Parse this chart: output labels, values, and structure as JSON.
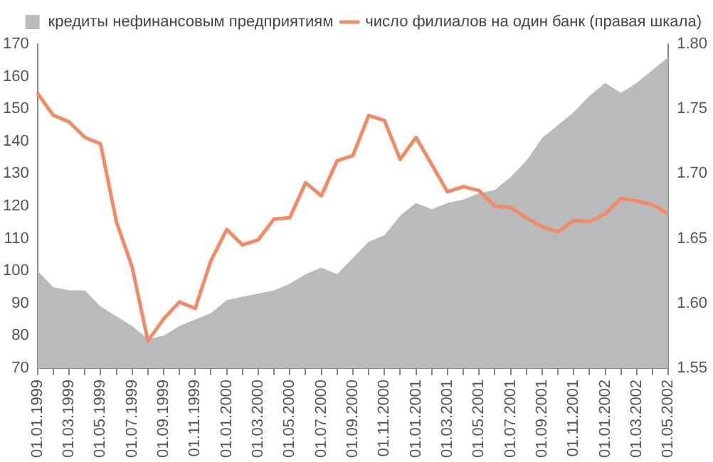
{
  "chart_data": {
    "type": "area",
    "categories": [
      "01.01.1999",
      null,
      "01.03.1999",
      null,
      "01.05.1999",
      null,
      "01.07.1999",
      null,
      "01.09.1999",
      null,
      "01.11.1999",
      null,
      "01.01.2000",
      null,
      "01.03.2000",
      null,
      "01.05.2000",
      null,
      "01.07.2000",
      null,
      "01.09.2000",
      null,
      "01.11.2000",
      null,
      "01.01.2001",
      null,
      "01.03.2001",
      null,
      "01.05.2001",
      null,
      "01.07.2001",
      null,
      "01.09.2001",
      null,
      "01.11.2001",
      null,
      "01.01.2002",
      null,
      "01.03.2002",
      null,
      "01.05.2002"
    ],
    "series": [
      {
        "name": "кредиты нефинансовым предприятиям",
        "color": "#b9babc",
        "values": [
          100,
          95,
          94,
          94,
          89,
          86,
          83,
          79,
          80,
          83,
          85,
          87,
          91,
          92,
          93,
          94,
          96,
          99,
          101,
          99,
          104,
          109,
          111,
          117,
          121,
          119,
          121,
          122,
          124,
          125,
          129,
          134,
          141,
          145,
          149,
          154,
          158,
          155,
          158,
          162,
          166
        ]
      },
      {
        "name": "число филиалов на один банк (правая шкала)",
        "type": "line",
        "axis": "y2",
        "color": "#f28a66",
        "values": [
          1.762,
          1.745,
          1.74,
          1.728,
          1.723,
          1.663,
          1.628,
          1.571,
          1.588,
          1.601,
          1.596,
          1.633,
          1.657,
          1.645,
          1.649,
          1.665,
          1.666,
          1.693,
          1.683,
          1.71,
          1.714,
          1.745,
          1.741,
          1.711,
          1.728,
          1.707,
          1.686,
          1.69,
          1.687,
          1.675,
          1.674,
          1.666,
          1.659,
          1.655,
          1.664,
          1.663,
          1.669,
          1.681,
          1.679,
          1.676,
          1.669
        ]
      }
    ],
    "ylim": [
      70,
      170
    ],
    "yticks": [
      70,
      80,
      90,
      100,
      110,
      120,
      130,
      140,
      150,
      160,
      170
    ],
    "y2lim": [
      1.55,
      1.8
    ],
    "y2ticks": [
      1.55,
      {
        "value": 1.6,
        "label": "1.60"
      },
      1.65,
      {
        "value": 1.7,
        "label": "1.70"
      },
      1.75,
      {
        "value": 1.8,
        "label": "1.80"
      }
    ],
    "grid": false,
    "legend": "top right",
    "marker": "none",
    "line_style": "solid"
  }
}
